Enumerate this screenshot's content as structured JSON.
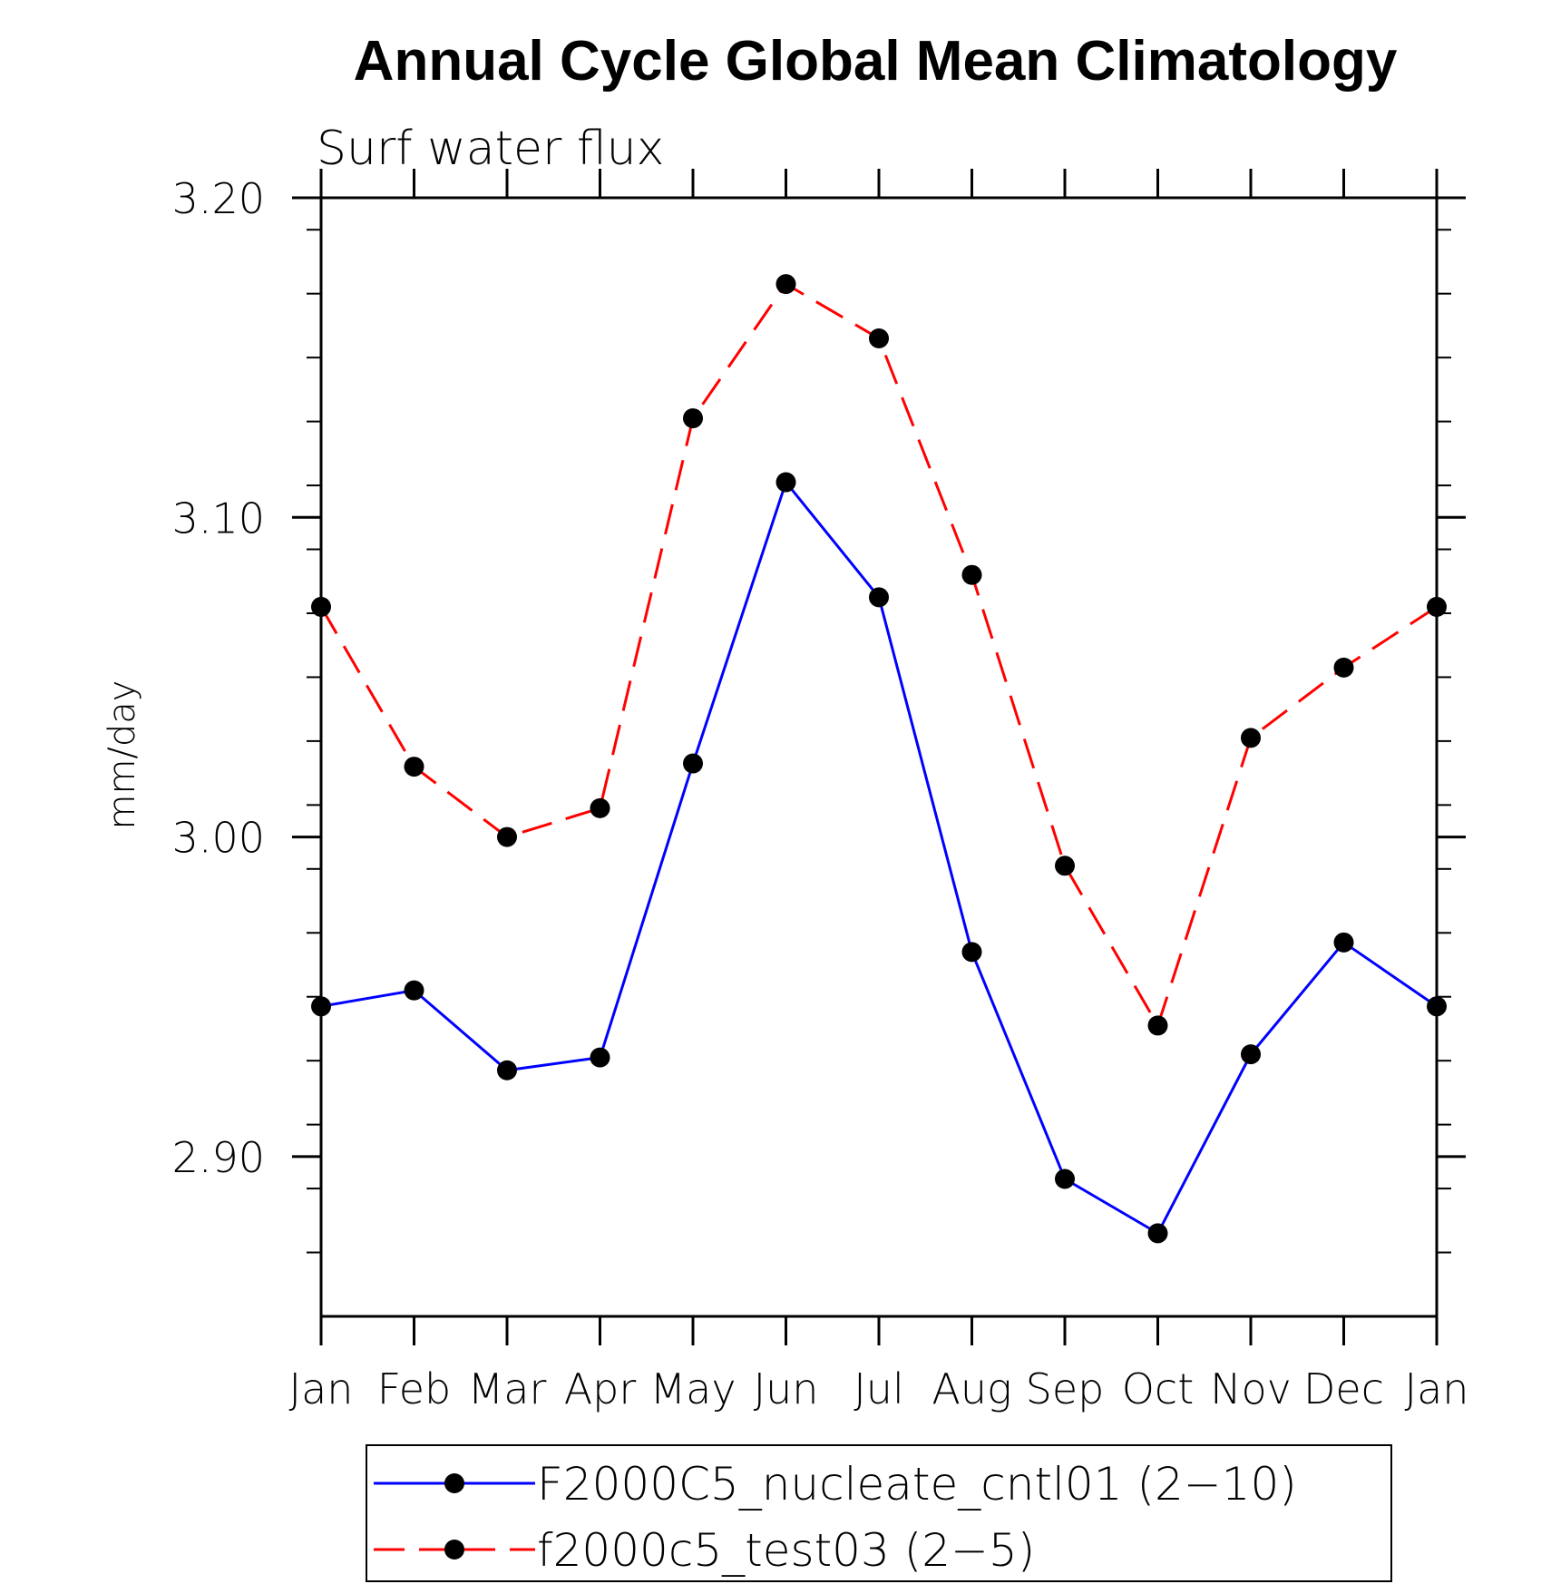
{
  "chart_data": {
    "type": "line",
    "title": "Annual Cycle Global Mean Climatology",
    "subtitle": "Surf water flux",
    "xlabel": "",
    "ylabel": "mm/day",
    "categories": [
      "Jan",
      "Feb",
      "Mar",
      "Apr",
      "May",
      "Jun",
      "Jul",
      "Aug",
      "Sep",
      "Oct",
      "Nov",
      "Dec",
      "Jan"
    ],
    "ylim": [
      2.85,
      3.2
    ],
    "yticks": [
      2.9,
      3.0,
      3.1,
      3.2
    ],
    "ytick_labels": [
      "2.90",
      "3.00",
      "3.10",
      "3.20"
    ],
    "series": [
      {
        "name": "F2000C5_nucleate_cntl01 (2−10)",
        "color": "#0000ff",
        "dash": "solid",
        "values": [
          2.947,
          2.952,
          2.927,
          2.931,
          3.023,
          3.111,
          3.075,
          2.964,
          2.893,
          2.876,
          2.932,
          2.967,
          2.947
        ]
      },
      {
        "name": "f2000c5_test03 (2−5)",
        "color": "#ff0000",
        "dash": "dashed",
        "values": [
          3.072,
          3.022,
          3.0,
          3.009,
          3.131,
          3.173,
          3.156,
          3.082,
          2.991,
          2.941,
          3.031,
          3.053,
          3.072
        ]
      }
    ],
    "marker_color": "#000000",
    "legend_position": "bottom"
  }
}
